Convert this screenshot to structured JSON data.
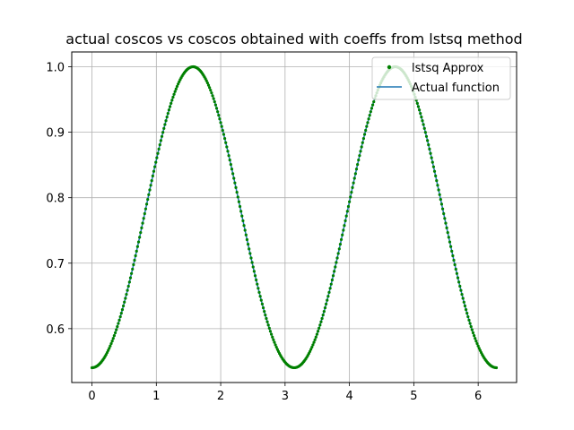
{
  "chart_data": {
    "type": "line",
    "title": "actual coscos vs coscos obtained with coeffs from lstsq method",
    "xlabel": "",
    "ylabel": "",
    "xlim": [
      -0.314,
      6.597
    ],
    "ylim": [
      0.5177,
      1.0226
    ],
    "grid": true,
    "legend_position": "top-right",
    "x_ticks": [
      0,
      1,
      2,
      3,
      4,
      5,
      6
    ],
    "x_tick_labels": [
      "0",
      "1",
      "2",
      "3",
      "4",
      "5",
      "6"
    ],
    "y_ticks": [
      0.6,
      0.7,
      0.8,
      0.9,
      1.0
    ],
    "y_tick_labels": [
      "0.6",
      "0.7",
      "0.8",
      "0.9",
      "1.0"
    ],
    "function": "cos(cos(x))",
    "x_domain": [
      0,
      6.2832
    ],
    "num_points": 400,
    "series": [
      {
        "name": "lstsq Approx",
        "style": "dots",
        "color": "#008000"
      },
      {
        "name": "Actual function",
        "style": "line",
        "color": "#1f77b4"
      }
    ]
  }
}
